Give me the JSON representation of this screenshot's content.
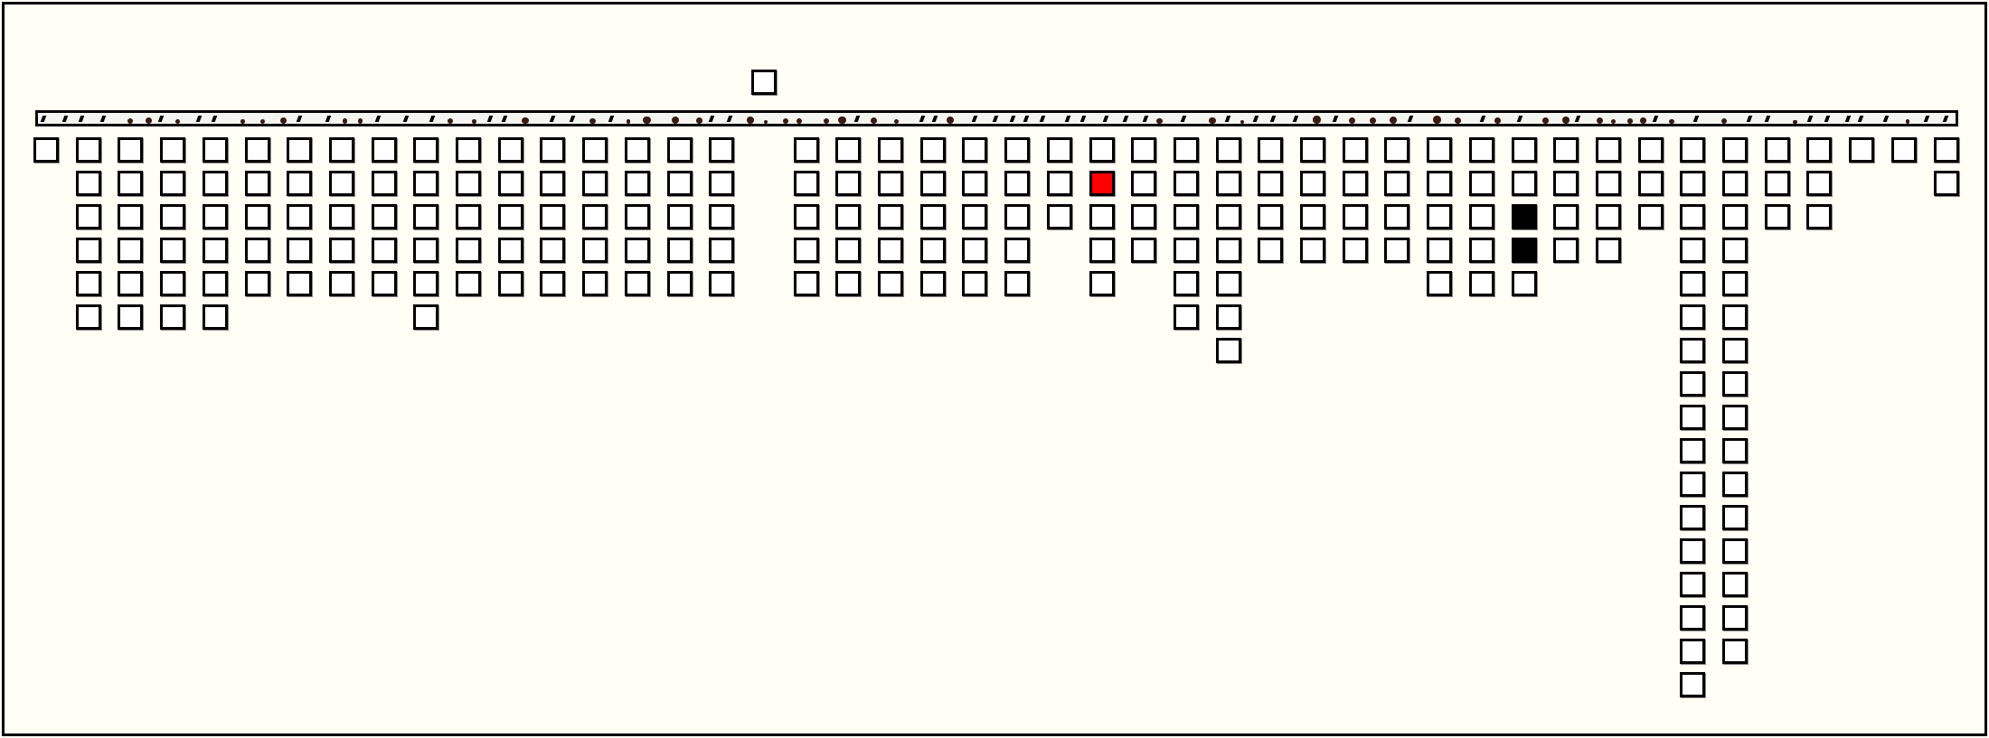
{
  "colors": {
    "background": "#fffff5",
    "empty": "#ffffff",
    "red": "#ff0000",
    "black": "#000000",
    "border": "#000000"
  },
  "floating_cell": {
    "state": "empty"
  },
  "columns": [
    {
      "count": 1
    },
    {
      "count": 6
    },
    {
      "count": 6
    },
    {
      "count": 6
    },
    {
      "count": 6
    },
    {
      "count": 5
    },
    {
      "count": 5
    },
    {
      "count": 5
    },
    {
      "count": 5
    },
    {
      "count": 6
    },
    {
      "count": 5
    },
    {
      "count": 5
    },
    {
      "count": 5
    },
    {
      "count": 5
    },
    {
      "count": 5
    },
    {
      "count": 5
    },
    {
      "count": 5
    },
    {
      "count": 0
    },
    {
      "count": 5
    },
    {
      "count": 5
    },
    {
      "count": 5
    },
    {
      "count": 5
    },
    {
      "count": 5
    },
    {
      "count": 5
    },
    {
      "count": 3
    },
    {
      "count": 5,
      "red": [
        1
      ]
    },
    {
      "count": 4
    },
    {
      "count": 6
    },
    {
      "count": 7
    },
    {
      "count": 4
    },
    {
      "count": 4
    },
    {
      "count": 4
    },
    {
      "count": 4
    },
    {
      "count": 5
    },
    {
      "count": 5
    },
    {
      "count": 5,
      "black": [
        2,
        3
      ]
    },
    {
      "count": 4
    },
    {
      "count": 4
    },
    {
      "count": 3
    },
    {
      "count": 17
    },
    {
      "count": 16
    },
    {
      "count": 3
    },
    {
      "count": 3
    },
    {
      "count": 1
    },
    {
      "count": 1
    },
    {
      "count": 2
    }
  ]
}
